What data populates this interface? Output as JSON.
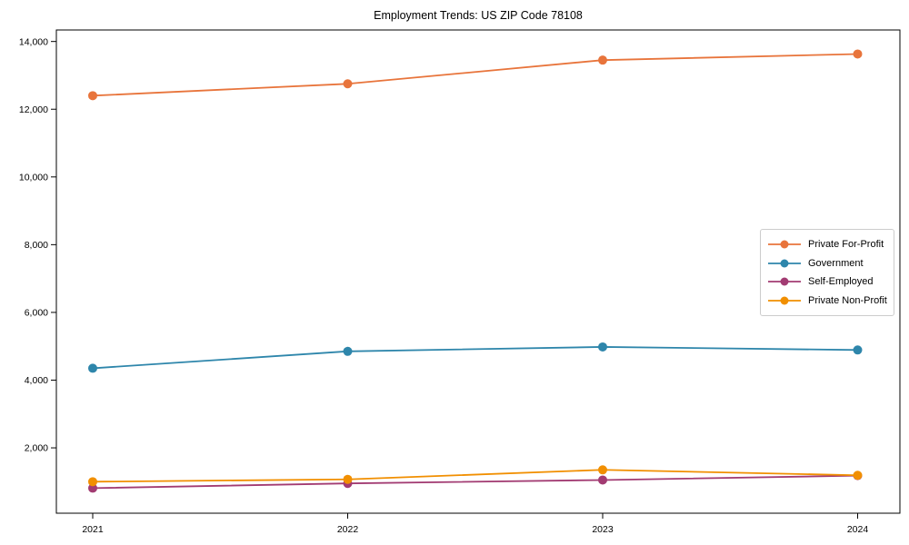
{
  "title": "Employment Trends: US ZIP Code 78108",
  "chart_data": {
    "type": "line",
    "title": "Employment Trends: US ZIP Code 78108",
    "xlabel": "",
    "ylabel": "",
    "grid": false,
    "legend_position": "center right",
    "x": [
      2021,
      2022,
      2023,
      2024
    ],
    "x_tick_labels": [
      "2021",
      "2022",
      "2023",
      "2024"
    ],
    "yticks": [
      2000,
      4000,
      6000,
      8000,
      10000,
      12000,
      14000
    ],
    "y_tick_labels": [
      "2,000",
      "4,000",
      "6,000",
      "8,000",
      "10,000",
      "12,000",
      "14,000"
    ],
    "ylim": [
      70,
      14340
    ],
    "series": [
      {
        "name": "Private For-Profit",
        "color": "#E8743B",
        "values": [
          12400,
          12750,
          13450,
          13630
        ]
      },
      {
        "name": "Government",
        "color": "#2E86AB",
        "values": [
          4350,
          4850,
          4980,
          4890
        ]
      },
      {
        "name": "Self-Employed",
        "color": "#A23B72",
        "values": [
          810,
          950,
          1050,
          1180
        ]
      },
      {
        "name": "Private Non-Profit",
        "color": "#F18F01",
        "values": [
          1000,
          1070,
          1350,
          1190
        ]
      }
    ]
  }
}
